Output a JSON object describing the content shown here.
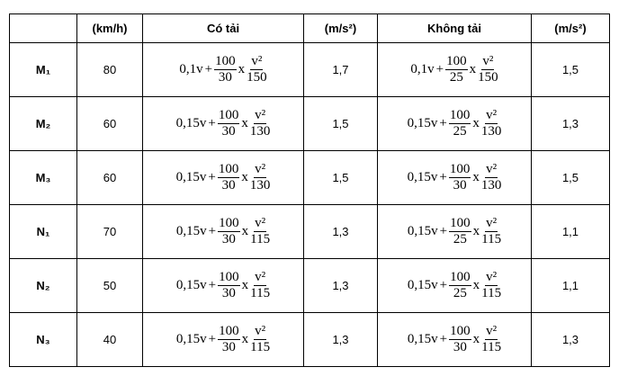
{
  "table": {
    "header": [
      "",
      "(km/h)",
      "Có tải",
      "(m/s²)",
      "Không tải",
      "(m/s²)"
    ],
    "rows": [
      {
        "label": "M₁",
        "speed": "80",
        "loaded": {
          "lead": "0,1v",
          "plus": "+",
          "num": "100",
          "den": "30",
          "times": "x",
          "vnum": "v²",
          "vden": "150"
        },
        "accel_loaded": "1,7",
        "unloaded": {
          "lead": "0,1v",
          "plus": "+",
          "num": "100",
          "den": "25",
          "times": "x",
          "vnum": "v²",
          "vden": "150"
        },
        "accel_unloaded": "1,5"
      },
      {
        "label": "M₂",
        "speed": "60",
        "loaded": {
          "lead": "0,15v",
          "plus": "+",
          "num": "100",
          "den": "30",
          "times": "x",
          "vnum": "v²",
          "vden": "130"
        },
        "accel_loaded": "1,5",
        "unloaded": {
          "lead": "0,15v",
          "plus": "+",
          "num": "100",
          "den": "25",
          "times": "x",
          "vnum": "v²",
          "vden": "130"
        },
        "accel_unloaded": "1,3"
      },
      {
        "label": "M₃",
        "speed": "60",
        "loaded": {
          "lead": "0,15v",
          "plus": "+",
          "num": "100",
          "den": "30",
          "times": "x",
          "vnum": "v²",
          "vden": "130"
        },
        "accel_loaded": "1,5",
        "unloaded": {
          "lead": "0,15v",
          "plus": "+",
          "num": "100",
          "den": "30",
          "times": "x",
          "vnum": "v²",
          "vden": "130"
        },
        "accel_unloaded": "1,5"
      },
      {
        "label": "N₁",
        "speed": "70",
        "loaded": {
          "lead": "0,15v",
          "plus": "+",
          "num": "100",
          "den": "30",
          "times": "x",
          "vnum": "v²",
          "vden": "115"
        },
        "accel_loaded": "1,3",
        "unloaded": {
          "lead": "0,15v",
          "plus": "+",
          "num": "100",
          "den": "25",
          "times": "x",
          "vnum": "v²",
          "vden": "115"
        },
        "accel_unloaded": "1,1"
      },
      {
        "label": "N₂",
        "speed": "50",
        "loaded": {
          "lead": "0,15v",
          "plus": "+",
          "num": "100",
          "den": "30",
          "times": "x",
          "vnum": "v²",
          "vden": "115"
        },
        "accel_loaded": "1,3",
        "unloaded": {
          "lead": "0,15v",
          "plus": "+",
          "num": "100",
          "den": "25",
          "times": "x",
          "vnum": "v²",
          "vden": "115"
        },
        "accel_unloaded": "1,1"
      },
      {
        "label": "N₃",
        "speed": "40",
        "loaded": {
          "lead": "0,15v",
          "plus": "+",
          "num": "100",
          "den": "30",
          "times": "x",
          "vnum": "v²",
          "vden": "115"
        },
        "accel_loaded": "1,3",
        "unloaded": {
          "lead": "0,15v",
          "plus": "+",
          "num": "100",
          "den": "30",
          "times": "x",
          "vnum": "v²",
          "vden": "115"
        },
        "accel_unloaded": "1,3"
      }
    ]
  }
}
